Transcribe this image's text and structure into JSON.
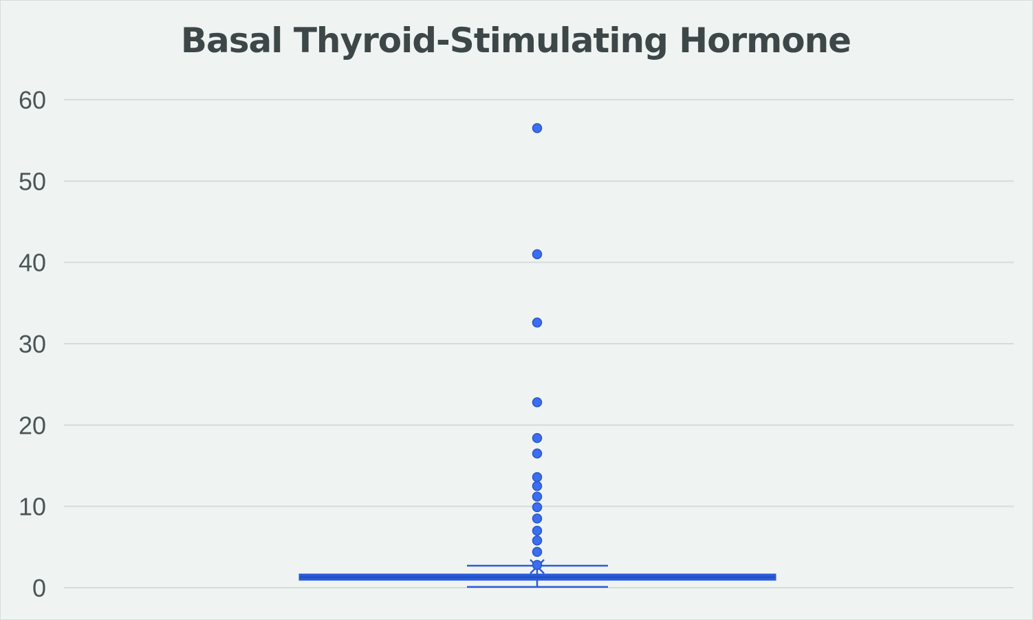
{
  "chart_data": {
    "type": "box",
    "title": "Basal Thyroid-Stimulating Hormone",
    "xlabel": "",
    "ylabel": "",
    "ylim": [
      0,
      60
    ],
    "yticks": [
      0,
      10,
      20,
      30,
      40,
      50,
      60
    ],
    "grid": true,
    "legend": "none",
    "series": [
      {
        "min": 0.1,
        "q1": 1.0,
        "median": 1.3,
        "q3": 1.6,
        "whisker_high": 2.7,
        "mean": 2.6,
        "outliers": [
          56.5,
          41.0,
          32.6,
          22.8,
          18.4,
          16.5,
          13.6,
          12.5,
          11.2,
          9.9,
          8.5,
          7.0,
          5.8,
          4.4,
          2.8
        ]
      }
    ],
    "colors": {
      "box": "#2a5bd7",
      "outlier": "#3b6ef0",
      "grid": "#d3ddd9",
      "text": "#4a5556",
      "title": "#3d4748"
    }
  }
}
